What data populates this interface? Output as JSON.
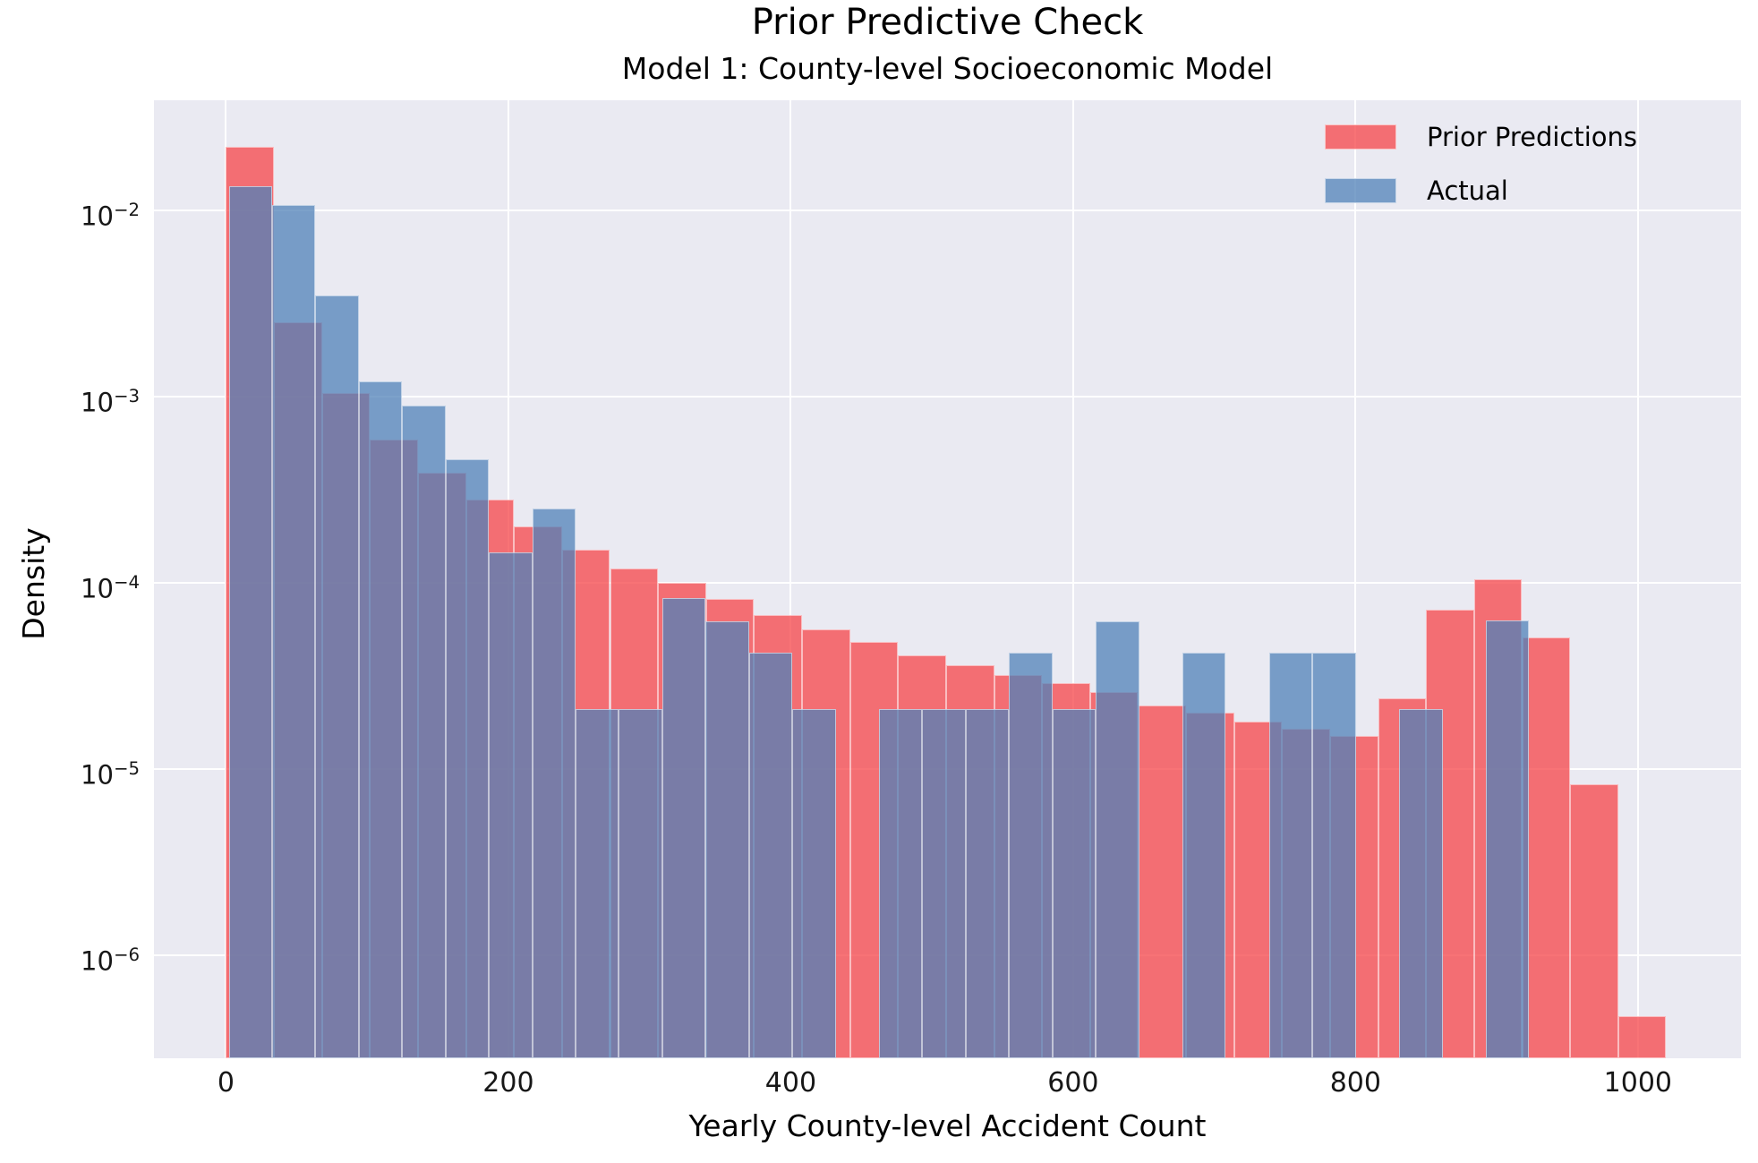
{
  "figure": {
    "title": "Prior Predictive Check",
    "subtitle": "Model 1: County-level Socioeconomic Model"
  },
  "axes": {
    "xlabel": "Yearly County-level Accident Count",
    "ylabel": "Density",
    "xticks": [
      0,
      200,
      400,
      600,
      800,
      1000
    ],
    "yticks": [
      {
        "base": "10",
        "exp": "−2",
        "value": 0.01
      },
      {
        "base": "10",
        "exp": "−3",
        "value": 0.001
      },
      {
        "base": "10",
        "exp": "−4",
        "value": 0.0001
      },
      {
        "base": "10",
        "exp": "−5",
        "value": 1e-05
      },
      {
        "base": "10",
        "exp": "−6",
        "value": 1e-06
      }
    ]
  },
  "legend": {
    "items": [
      {
        "label": "Prior Predictions",
        "series": "prior"
      },
      {
        "label": "Actual",
        "series": "actual"
      }
    ],
    "position": "upper right",
    "frame": false
  },
  "colors": {
    "axes_background": "#eaeaf2",
    "grid": "#ffffff",
    "prior_fill_rgba": "rgba(245,68,72,0.75)",
    "actual_fill_rgba": "rgba(80,129,184,0.75)",
    "prior_composite_hex": "#f26e72",
    "actual_composite_hex": "#769cc8",
    "overlap_composite_hex": "#787da8"
  },
  "chart_data": {
    "type": "histogram",
    "subtype": "overlaid-density-histograms",
    "yscale": "log",
    "grid": true,
    "xlim": [
      -51,
      1073
    ],
    "ylim": [
      2.8e-07,
      0.039
    ],
    "title": "Prior Predictive Check",
    "subtitle": "Model 1: County-level Socioeconomic Model",
    "xlabel": "Yearly County-level Accident Count",
    "ylabel": "Density",
    "series": [
      {
        "name": "Prior Predictions",
        "color_key": "prior",
        "bin_start": 0,
        "bin_width": 34,
        "densities": [
          0.022,
          0.0025,
          0.00105,
          0.00059,
          0.00039,
          0.00028,
          0.0002,
          0.00015,
          0.00012,
          0.0001,
          8.2e-05,
          6.7e-05,
          5.6e-05,
          4.8e-05,
          4.1e-05,
          3.6e-05,
          3.2e-05,
          2.9e-05,
          2.6e-05,
          2.2e-05,
          2e-05,
          1.8e-05,
          1.65e-05,
          1.5e-05,
          2.4e-05,
          7.2e-05,
          0.000104,
          5.1e-05,
          8.3e-06,
          4.7e-07
        ]
      },
      {
        "name": "Actual",
        "color_key": "actual",
        "bin_start": 2,
        "bin_width": 30.7,
        "densities": [
          0.0135,
          0.0107,
          0.0035,
          0.0012,
          0.00089,
          0.00046,
          0.000145,
          0.00025,
          2.1e-05,
          2.1e-05,
          8.3e-05,
          6.2e-05,
          4.2e-05,
          2.1e-05,
          0,
          2.1e-05,
          2.1e-05,
          2.1e-05,
          4.2e-05,
          2.1e-05,
          6.2e-05,
          0,
          4.2e-05,
          0,
          4.2e-05,
          4.2e-05,
          0,
          2.1e-05,
          0,
          6.3e-05
        ]
      }
    ]
  }
}
